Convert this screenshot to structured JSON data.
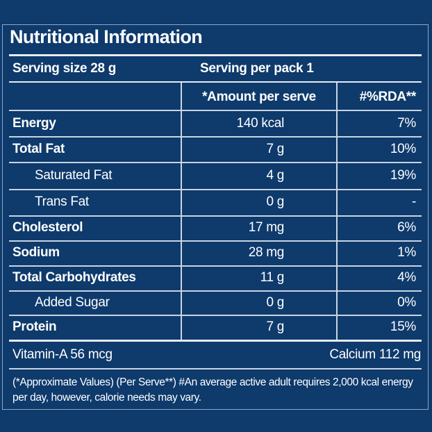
{
  "title": "Nutritional Information",
  "serving_size": "Serving size 28 g",
  "serving_per_pack": "Serving per pack 1",
  "headers": {
    "amount": "*Amount per serve",
    "rda": "#%RDA**"
  },
  "rows": [
    {
      "name": "Energy",
      "amount": "140 kcal",
      "rda": "7%"
    },
    {
      "name": "Total Fat",
      "amount": "7 g",
      "rda": "10%"
    },
    {
      "name": "Saturated Fat",
      "amount": "4 g",
      "rda": "19%"
    },
    {
      "name": "Trans Fat",
      "amount": "0 g",
      "rda": "-"
    },
    {
      "name": "Cholesterol",
      "amount": "17 mg",
      "rda": "6%"
    },
    {
      "name": "Sodium",
      "amount": "28 mg",
      "rda": "1%"
    },
    {
      "name": "Total Carbohydrates",
      "amount": "11 g",
      "rda": "4%"
    },
    {
      "name": "Added Sugar",
      "amount": "0 g",
      "rda": "0%"
    },
    {
      "name": "Protein",
      "amount": "7 g",
      "rda": "15%"
    }
  ],
  "vitamin_a": "Vitamin-A 56 mcg",
  "calcium": "Calcium 112 mg",
  "footnote": "(*Approximate Values) (Per Serve**) #An average active adult requires 2,000 kcal energy per day, however, calorie needs may vary.",
  "colors": {
    "background": "#0e3a6c",
    "text": "#ffffff"
  }
}
